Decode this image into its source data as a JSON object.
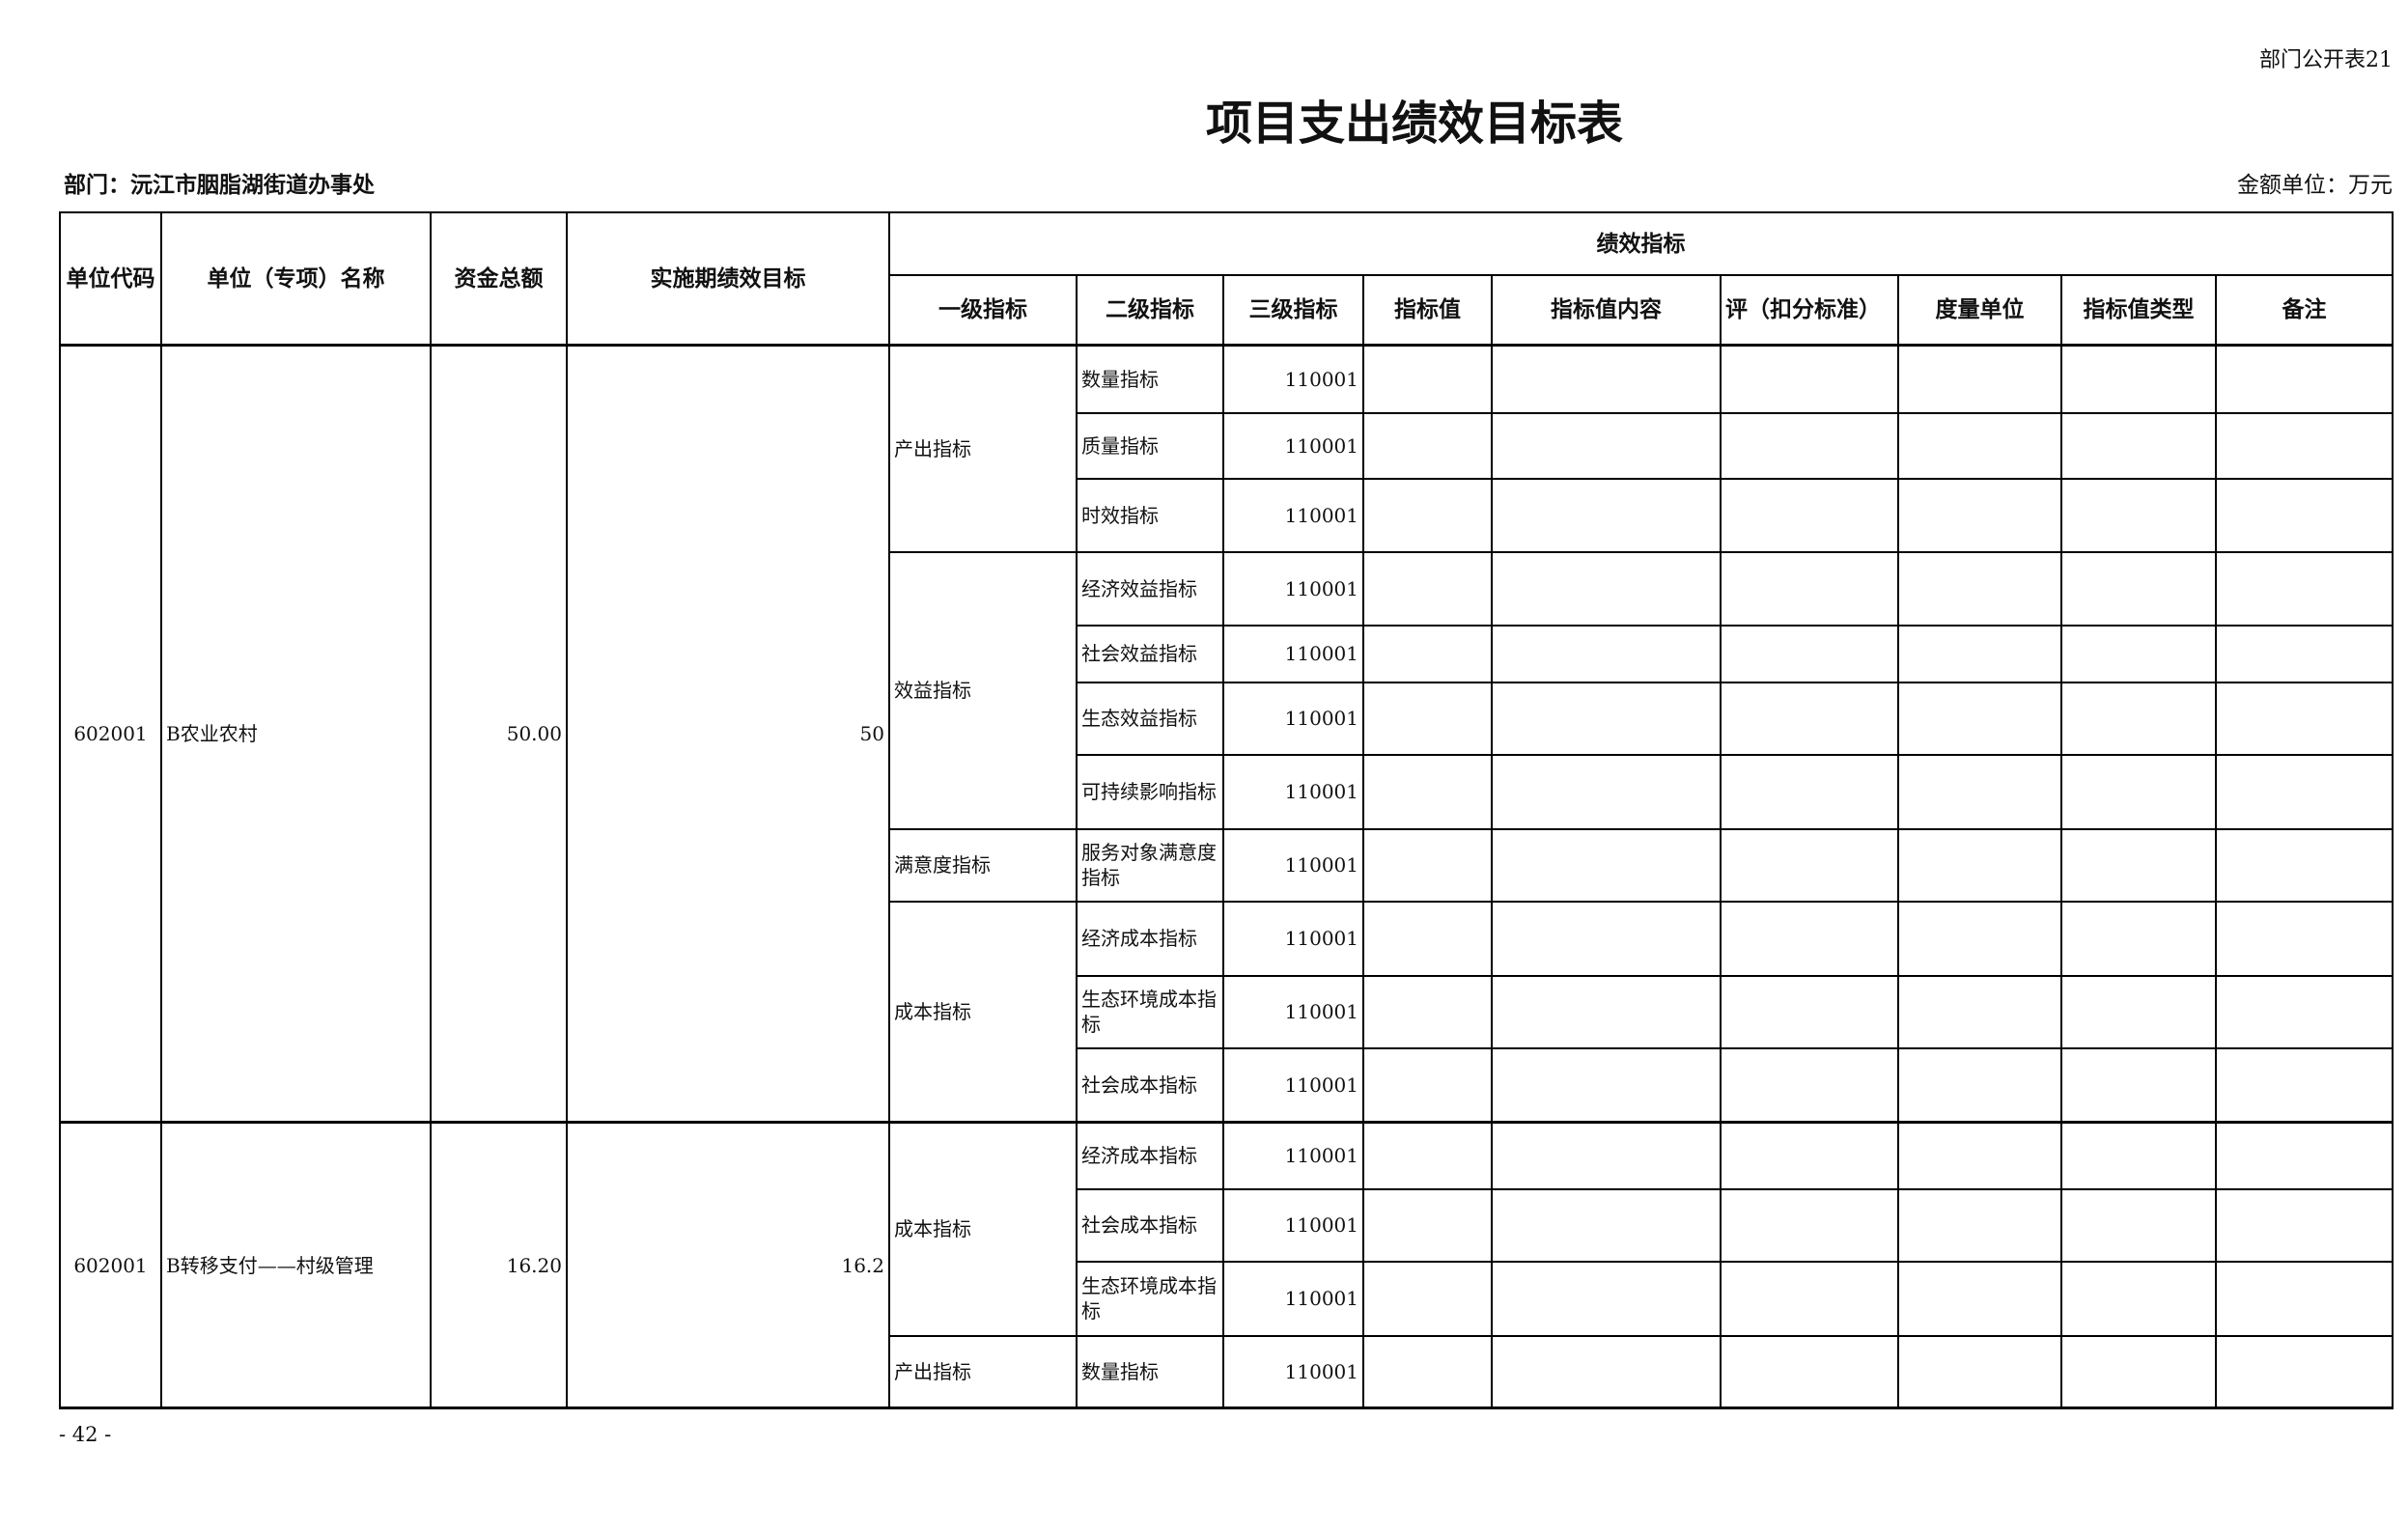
{
  "form_no": "部门公开表21",
  "title": "项目支出绩效目标表",
  "department": "部门：沅江市胭脂湖街道办事处",
  "amount_unit": "金额单位：万元",
  "page_number": "- 42 -",
  "headers": {
    "unit_code": "单位代码",
    "unit_name": "单位（专项）名称",
    "total_funds": "资金总额",
    "period_goal": "实施期绩效目标",
    "performance_indicators": "绩效指标",
    "level1": "一级指标",
    "level2": "二级指标",
    "level3": "三级指标",
    "indicator_value": "指标值",
    "indicator_content": "指标值内容",
    "scoring": "评（扣分标准）",
    "measure_unit": "度量单位",
    "value_type": "指标值类型",
    "remarks": "备注"
  },
  "projects": [
    {
      "code": "602001",
      "name": "B农业农村",
      "total": "50.00",
      "goal": "50",
      "groups": [
        {
          "level1": "产出指标",
          "items": [
            {
              "level2": "数量指标",
              "level3": "110001",
              "h": 70
            },
            {
              "level2": "质量指标",
              "level3": "110001",
              "h": 68
            },
            {
              "level2": "时效指标",
              "level3": "110001",
              "h": 76
            }
          ]
        },
        {
          "level1": "效益指标",
          "items": [
            {
              "level2": "经济效益指标",
              "level3": "110001",
              "h": 76
            },
            {
              "level2": "社会效益指标",
              "level3": "110001",
              "h": 59
            },
            {
              "level2": "生态效益指标",
              "level3": "110001",
              "h": 75
            },
            {
              "level2": "可持续影响指标",
              "level3": "110001",
              "h": 77
            }
          ]
        },
        {
          "level1": "满意度指标",
          "items": [
            {
              "level2": "服务对象满意度指标",
              "level3": "110001",
              "h": 75
            }
          ]
        },
        {
          "level1": "成本指标",
          "items": [
            {
              "level2": "经济成本指标",
              "level3": "110001",
              "h": 77
            },
            {
              "level2": "生态环境成本指标",
              "level3": "110001",
              "h": 75
            },
            {
              "level2": "社会成本指标",
              "level3": "110001",
              "h": 77
            }
          ]
        }
      ]
    },
    {
      "code": "602001",
      "name": "B转移支付——村级管理",
      "total": "16.20",
      "goal": "16.2",
      "groups": [
        {
          "level1": "成本指标",
          "items": [
            {
              "level2": "经济成本指标",
              "level3": "110001",
              "h": 69
            },
            {
              "level2": "社会成本指标",
              "level3": "110001",
              "h": 75
            },
            {
              "level2": "生态环境成本指标",
              "level3": "110001",
              "h": 77
            }
          ]
        },
        {
          "level1": "产出指标",
          "items": [
            {
              "level2": "数量指标",
              "level3": "110001",
              "h": 75
            }
          ]
        }
      ]
    }
  ]
}
